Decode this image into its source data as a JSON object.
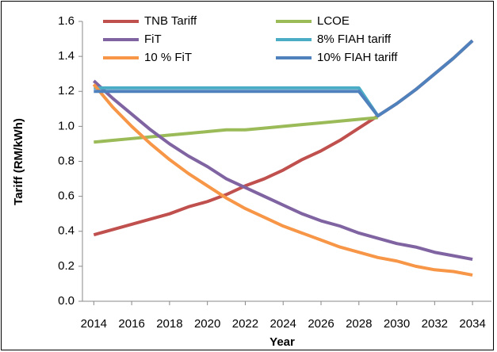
{
  "chart_data": {
    "type": "line",
    "ylabel": "Tariff (RM/kWh)",
    "xlabel": "Year",
    "x": [
      2014,
      2015,
      2016,
      2017,
      2018,
      2019,
      2020,
      2021,
      2022,
      2023,
      2024,
      2025,
      2026,
      2027,
      2028,
      2029,
      2030,
      2031,
      2032,
      2033,
      2034
    ],
    "xlim": [
      2013.4,
      2035
    ],
    "xticks": [
      2014,
      2016,
      2018,
      2020,
      2022,
      2024,
      2026,
      2028,
      2030,
      2032,
      2034
    ],
    "ylim": [
      0,
      1.6
    ],
    "yticks": [
      {
        "value": 0,
        "label": "0.0"
      },
      0.2,
      0.4,
      0.6,
      0.8,
      {
        "value": 1,
        "label": "1.0"
      },
      1.2,
      1.4,
      1.6
    ],
    "grid": false,
    "legend": "top",
    "series": [
      {
        "name": "TNB Tariff",
        "color": "#c0504d",
        "values": [
          0.38,
          0.41,
          0.44,
          0.47,
          0.5,
          0.54,
          0.57,
          0.61,
          0.66,
          0.7,
          0.75,
          0.81,
          0.86,
          0.92,
          0.99,
          1.06,
          1.13,
          1.21,
          1.3,
          1.39,
          1.49
        ]
      },
      {
        "name": "LCOE",
        "color": "#9bbb59",
        "values": [
          0.91,
          0.92,
          0.93,
          0.94,
          0.95,
          0.96,
          0.97,
          0.98,
          0.98,
          0.99,
          1.0,
          1.01,
          1.02,
          1.03,
          1.04,
          1.05,
          null,
          null,
          null,
          null,
          null
        ]
      },
      {
        "name": "FiT",
        "color": "#8064a2",
        "values": [
          1.26,
          1.16,
          1.07,
          0.98,
          0.9,
          0.83,
          0.77,
          0.7,
          0.65,
          0.6,
          0.55,
          0.5,
          0.46,
          0.43,
          0.39,
          0.36,
          0.33,
          0.31,
          0.28,
          0.26,
          0.24
        ]
      },
      {
        "name": "8% FIAH tariff",
        "color": "#4bacc6",
        "values": [
          1.22,
          1.22,
          1.22,
          1.22,
          1.22,
          1.22,
          1.22,
          1.22,
          1.22,
          1.22,
          1.22,
          1.22,
          1.22,
          1.22,
          1.22,
          1.06,
          null,
          null,
          null,
          null,
          null
        ]
      },
      {
        "name": "10 % FiT",
        "color": "#f79646",
        "values": [
          1.24,
          1.11,
          1.0,
          0.9,
          0.81,
          0.73,
          0.66,
          0.59,
          0.53,
          0.48,
          0.43,
          0.39,
          0.35,
          0.31,
          0.28,
          0.25,
          0.23,
          0.2,
          0.18,
          0.17,
          0.15
        ]
      },
      {
        "name": "10% FIAH tariff",
        "color": "#4f81bd",
        "values": [
          1.2,
          1.2,
          1.2,
          1.2,
          1.2,
          1.2,
          1.2,
          1.2,
          1.2,
          1.2,
          1.2,
          1.2,
          1.2,
          1.2,
          1.2,
          1.06,
          1.13,
          1.21,
          1.3,
          1.39,
          1.49
        ]
      }
    ]
  }
}
